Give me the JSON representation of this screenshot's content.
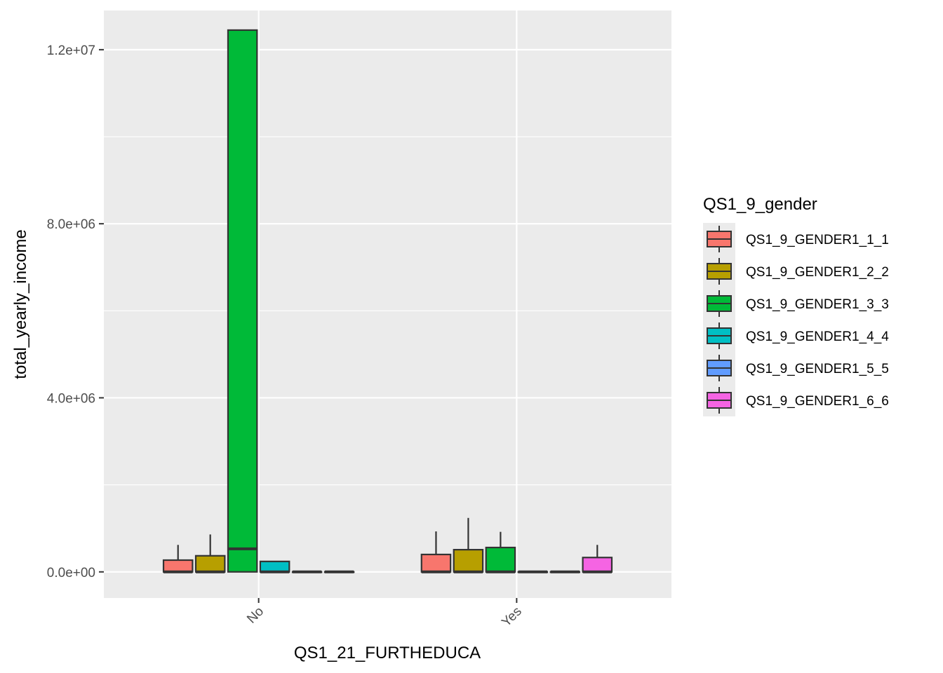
{
  "chart_data": {
    "type": "boxplot",
    "title": "",
    "xlabel": "QS1_21_FURTHEDUCA",
    "ylabel": "total_yearly_income",
    "ylim": [
      -600000,
      12900000
    ],
    "yticks": [
      0,
      4000000,
      8000000,
      12000000
    ],
    "ytick_labels": [
      "0.0e+00",
      "4.0e+06",
      "8.0e+06",
      "1.2e+07"
    ],
    "categories": [
      "No",
      "Yes"
    ],
    "grid": true,
    "legend": {
      "title": "QS1_9_gender",
      "position": "right",
      "entries": [
        "QS1_9_GENDER1_1_1",
        "QS1_9_GENDER1_2_2",
        "QS1_9_GENDER1_3_3",
        "QS1_9_GENDER1_4_4",
        "QS1_9_GENDER1_5_5",
        "QS1_9_GENDER1_6_6"
      ]
    },
    "colors": [
      "#F8766D",
      "#B79F00",
      "#00BA38",
      "#00BFC4",
      "#619CFF",
      "#F564E3"
    ],
    "series": [
      {
        "name": "QS1_9_GENDER1_1_1",
        "boxes": [
          {
            "category": "No",
            "q1": 0,
            "median": 0,
            "q3": 270000,
            "whisker_low": 0,
            "whisker_high": 620000
          },
          {
            "category": "Yes",
            "q1": 0,
            "median": 0,
            "q3": 400000,
            "whisker_low": 0,
            "whisker_high": 930000
          }
        ]
      },
      {
        "name": "QS1_9_GENDER1_2_2",
        "boxes": [
          {
            "category": "No",
            "q1": 0,
            "median": 0,
            "q3": 370000,
            "whisker_low": 0,
            "whisker_high": 860000
          },
          {
            "category": "Yes",
            "q1": 0,
            "median": 0,
            "q3": 510000,
            "whisker_low": 0,
            "whisker_high": 1240000
          }
        ]
      },
      {
        "name": "QS1_9_GENDER1_3_3",
        "boxes": [
          {
            "category": "No",
            "q1": 0,
            "median": 530000,
            "q3": 12450000,
            "whisker_low": 0,
            "whisker_high": 12450000
          },
          {
            "category": "Yes",
            "q1": 0,
            "median": 0,
            "q3": 560000,
            "whisker_low": 0,
            "whisker_high": 920000
          }
        ]
      },
      {
        "name": "QS1_9_GENDER1_4_4",
        "boxes": [
          {
            "category": "No",
            "q1": 0,
            "median": 0,
            "q3": 240000,
            "whisker_low": 0,
            "whisker_high": 240000
          },
          {
            "category": "Yes",
            "q1": 0,
            "median": 0,
            "q3": 0,
            "whisker_low": 0,
            "whisker_high": 0
          }
        ]
      },
      {
        "name": "QS1_9_GENDER1_5_5",
        "boxes": [
          {
            "category": "No",
            "q1": 0,
            "median": 0,
            "q3": 0,
            "whisker_low": 0,
            "whisker_high": 0
          },
          {
            "category": "Yes",
            "q1": 0,
            "median": 0,
            "q3": 0,
            "whisker_low": 0,
            "whisker_high": 0
          }
        ]
      },
      {
        "name": "QS1_9_GENDER1_6_6",
        "boxes": [
          {
            "category": "No",
            "q1": 0,
            "median": 0,
            "q3": 0,
            "whisker_low": 0,
            "whisker_high": 0
          },
          {
            "category": "Yes",
            "q1": 0,
            "median": 0,
            "q3": 330000,
            "whisker_low": 0,
            "whisker_high": 620000
          }
        ]
      }
    ]
  }
}
